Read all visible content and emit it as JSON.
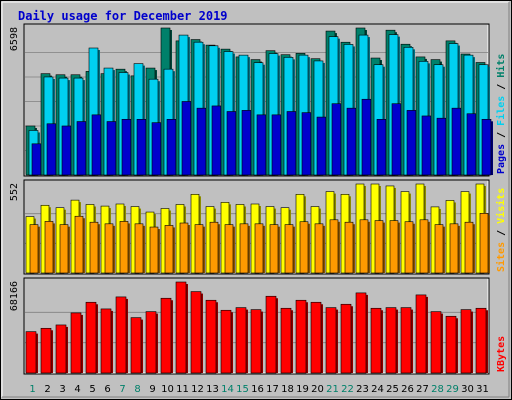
{
  "chart_data": {
    "type": "bar",
    "title": "Daily usage for December 2019",
    "categories": [
      "1",
      "2",
      "3",
      "4",
      "5",
      "6",
      "7",
      "8",
      "9",
      "10",
      "11",
      "12",
      "13",
      "14",
      "15",
      "16",
      "17",
      "18",
      "19",
      "20",
      "21",
      "22",
      "23",
      "24",
      "25",
      "26",
      "27",
      "28",
      "29",
      "30",
      "31"
    ],
    "weekend_days": [
      "1",
      "7",
      "8",
      "14",
      "15",
      "21",
      "22",
      "28",
      "29"
    ],
    "panels": [
      {
        "max_label": "6598",
        "ymax": 6598,
        "legend": [
          "Pages",
          "Files",
          "Hits"
        ],
        "series": [
          {
            "name": "Hits",
            "color": "#00806a",
            "values": [
              2200,
              4550,
              4500,
              4500,
              4650,
              4550,
              4750,
              4450,
              4800,
              6598,
              6020,
              6080,
              5830,
              5650,
              5300,
              5180,
              5580,
              5400,
              5460,
              5220,
              6460,
              5960,
              6598,
              5250,
              6500,
              5870,
              5300,
              5180,
              6020,
              5430,
              5050
            ]
          },
          {
            "name": "Files",
            "color": "#00d0f0",
            "values": [
              2000,
              4400,
              4350,
              4350,
              5700,
              4800,
              4600,
              5000,
              4300,
              4750,
              6280,
              5960,
              5800,
              5540,
              5380,
              5040,
              5450,
              5280,
              5380,
              5120,
              6210,
              5860,
              6280,
              4950,
              6300,
              5730,
              5100,
              4950,
              5900,
              5380,
              4950
            ]
          },
          {
            "name": "Pages",
            "color": "#0000cc",
            "values": [
              1400,
              2300,
              2200,
              2400,
              2700,
              2400,
              2500,
              2500,
              2350,
              2500,
              3300,
              3000,
              3100,
              2850,
              2900,
              2700,
              2700,
              2850,
              2800,
              2600,
              3200,
              3000,
              3400,
              2500,
              3200,
              2900,
              2650,
              2550,
              3000,
              2750,
              2500
            ]
          }
        ]
      },
      {
        "max_label": "552",
        "ymax": 552,
        "legend": [
          "Sites",
          "Visits"
        ],
        "series": [
          {
            "name": "Visits",
            "color": "#ffff00",
            "values": [
              350,
              420,
              405,
              452,
              425,
              415,
              428,
              412,
              378,
              400,
              425,
              488,
              412,
              438,
              425,
              428,
              412,
              405,
              488,
              412,
              505,
              488,
              552,
              552,
              540,
              505,
              552,
              410,
              450,
              505,
              552
            ]
          },
          {
            "name": "Sites",
            "color": "#ff9900",
            "values": [
              300,
              320,
              300,
              352,
              315,
              305,
              320,
              305,
              285,
              295,
              310,
              300,
              315,
              300,
              305,
              305,
              300,
              300,
              318,
              305,
              330,
              315,
              330,
              325,
              325,
              318,
              330,
              300,
              305,
              315,
              370
            ]
          }
        ]
      },
      {
        "max_label": "68166",
        "ymax": 68166,
        "legend": [
          "KBytes"
        ],
        "series": [
          {
            "name": "KBytes",
            "color": "#ff0000",
            "values": [
              31000,
              33500,
              36000,
              45000,
              53000,
              48000,
              57000,
              41500,
              46000,
              56000,
              68166,
              61000,
              54500,
              47000,
              49000,
              47500,
              57500,
              48500,
              54500,
              53000,
              49000,
              51500,
              60000,
              48500,
              49000,
              49000,
              58500,
              46000,
              42500,
              47500,
              48500
            ]
          }
        ]
      }
    ]
  }
}
